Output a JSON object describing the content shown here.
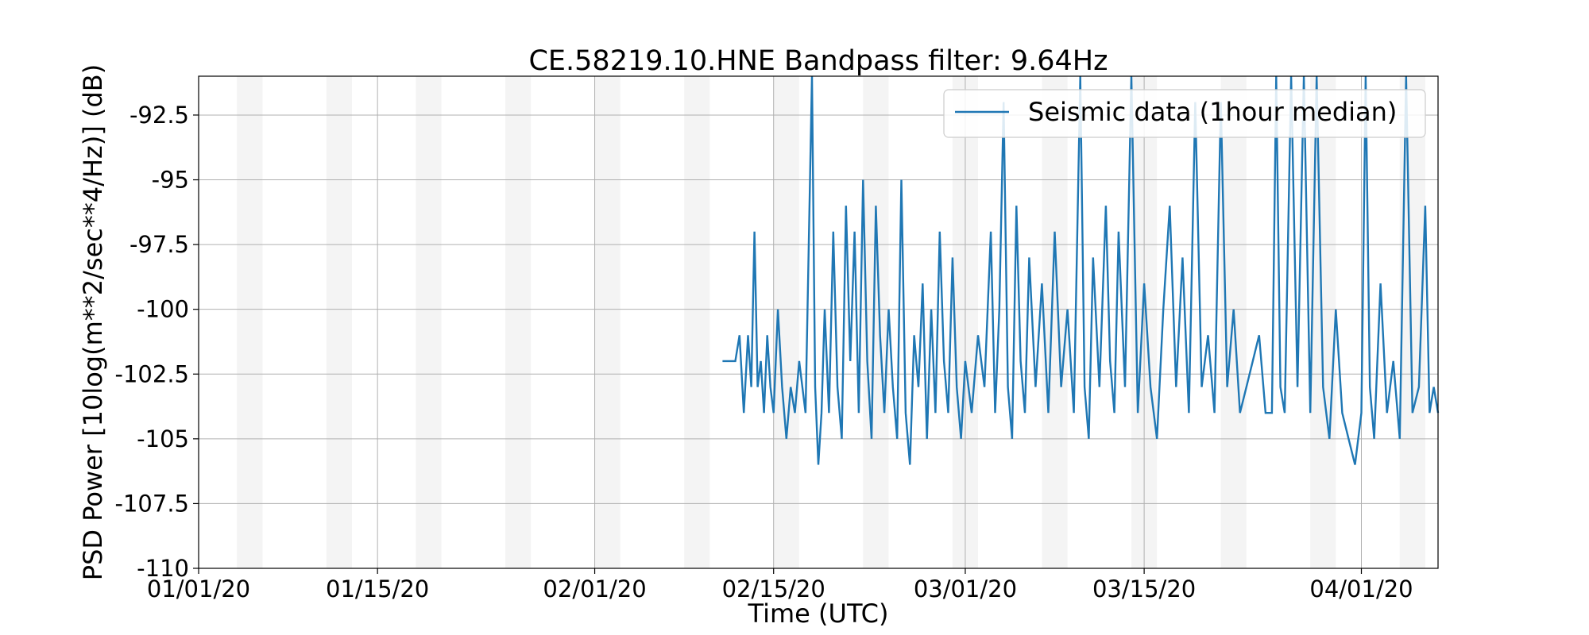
{
  "chart_data": {
    "type": "line",
    "title": "CE.58219.10.HNE Bandpass filter: 9.64Hz",
    "xlabel": "Time (UTC)",
    "ylabel": "PSD Power [10log(m**2/sec**4/Hz)] (dB)",
    "xlim": [
      "2020-01-01",
      "2020-04-07"
    ],
    "ylim": [
      -110,
      -91
    ],
    "x_ticks": [
      {
        "date": "2020-01-01",
        "label": "01/01/20"
      },
      {
        "date": "2020-01-15",
        "label": "01/15/20"
      },
      {
        "date": "2020-02-01",
        "label": "02/01/20"
      },
      {
        "date": "2020-02-15",
        "label": "02/15/20"
      },
      {
        "date": "2020-03-01",
        "label": "03/01/20"
      },
      {
        "date": "2020-03-15",
        "label": "03/15/20"
      },
      {
        "date": "2020-04-01",
        "label": "04/01/20"
      }
    ],
    "y_ticks": [
      {
        "value": -92.5,
        "label": "-92.5"
      },
      {
        "value": -95,
        "label": "-95"
      },
      {
        "value": -97.5,
        "label": "-97.5"
      },
      {
        "value": -100,
        "label": "-100"
      },
      {
        "value": -102.5,
        "label": "-102.5"
      },
      {
        "value": -105,
        "label": "-105"
      },
      {
        "value": -107.5,
        "label": "-107.5"
      },
      {
        "value": -110,
        "label": "-110"
      }
    ],
    "grid": true,
    "legend_position": "top-right",
    "series": [
      {
        "name": "Seismic data (1hour median)",
        "color": "#1f77b4",
        "points": [
          [
            "2020-02-11",
            -102
          ],
          [
            "2020-02-12",
            -102
          ],
          [
            "2020-02-12",
            -101
          ],
          [
            "2020-02-12",
            -104
          ],
          [
            "2020-02-13",
            -101
          ],
          [
            "2020-02-13",
            -103
          ],
          [
            "2020-02-13",
            -97
          ],
          [
            "2020-02-13",
            -103
          ],
          [
            "2020-02-14",
            -102
          ],
          [
            "2020-02-14",
            -104
          ],
          [
            "2020-02-14",
            -101
          ],
          [
            "2020-02-14",
            -103
          ],
          [
            "2020-02-15",
            -104
          ],
          [
            "2020-02-15",
            -100
          ],
          [
            "2020-02-15",
            -103
          ],
          [
            "2020-02-16",
            -105
          ],
          [
            "2020-02-16",
            -103
          ],
          [
            "2020-02-16",
            -104
          ],
          [
            "2020-02-17",
            -102
          ],
          [
            "2020-02-17",
            -104
          ],
          [
            "2020-02-18",
            -91
          ],
          [
            "2020-02-18",
            -103
          ],
          [
            "2020-02-18",
            -106
          ],
          [
            "2020-02-18",
            -104
          ],
          [
            "2020-02-19",
            -100
          ],
          [
            "2020-02-19",
            -104
          ],
          [
            "2020-02-19",
            -97
          ],
          [
            "2020-02-20",
            -103
          ],
          [
            "2020-02-20",
            -105
          ],
          [
            "2020-02-20",
            -96
          ],
          [
            "2020-02-21",
            -102
          ],
          [
            "2020-02-21",
            -97
          ],
          [
            "2020-02-21",
            -104
          ],
          [
            "2020-02-22",
            -95
          ],
          [
            "2020-02-22",
            -102
          ],
          [
            "2020-02-22",
            -105
          ],
          [
            "2020-02-23",
            -96
          ],
          [
            "2020-02-23",
            -101
          ],
          [
            "2020-02-23",
            -104
          ],
          [
            "2020-02-24",
            -100
          ],
          [
            "2020-02-24",
            -103
          ],
          [
            "2020-02-24",
            -105
          ],
          [
            "2020-02-25",
            -95
          ],
          [
            "2020-02-25",
            -104
          ],
          [
            "2020-02-25",
            -106
          ],
          [
            "2020-02-26",
            -101
          ],
          [
            "2020-02-26",
            -103
          ],
          [
            "2020-02-26",
            -99
          ],
          [
            "2020-02-27",
            -105
          ],
          [
            "2020-02-27",
            -100
          ],
          [
            "2020-02-27",
            -104
          ],
          [
            "2020-02-28",
            -97
          ],
          [
            "2020-02-28",
            -102
          ],
          [
            "2020-02-28",
            -104
          ],
          [
            "2020-02-29",
            -98
          ],
          [
            "2020-02-29",
            -103
          ],
          [
            "2020-02-29",
            -105
          ],
          [
            "2020-03-01",
            -102
          ],
          [
            "2020-03-01",
            -104
          ],
          [
            "2020-03-02",
            -101
          ],
          [
            "2020-03-02",
            -103
          ],
          [
            "2020-03-03",
            -97
          ],
          [
            "2020-03-03",
            -104
          ],
          [
            "2020-03-03",
            -100
          ],
          [
            "2020-03-04",
            -92
          ],
          [
            "2020-03-04",
            -103
          ],
          [
            "2020-03-04",
            -105
          ],
          [
            "2020-03-05",
            -96
          ],
          [
            "2020-03-05",
            -102
          ],
          [
            "2020-03-05",
            -104
          ],
          [
            "2020-03-06",
            -98
          ],
          [
            "2020-03-06",
            -103
          ],
          [
            "2020-03-07",
            -99
          ],
          [
            "2020-03-07",
            -104
          ],
          [
            "2020-03-08",
            -97
          ],
          [
            "2020-03-08",
            -103
          ],
          [
            "2020-03-09",
            -100
          ],
          [
            "2020-03-09",
            -104
          ],
          [
            "2020-03-10",
            -91
          ],
          [
            "2020-03-10",
            -103
          ],
          [
            "2020-03-10",
            -105
          ],
          [
            "2020-03-11",
            -98
          ],
          [
            "2020-03-11",
            -103
          ],
          [
            "2020-03-12",
            -96
          ],
          [
            "2020-03-12",
            -102
          ],
          [
            "2020-03-12",
            -104
          ],
          [
            "2020-03-13",
            -97
          ],
          [
            "2020-03-13",
            -103
          ],
          [
            "2020-03-14",
            -91
          ],
          [
            "2020-03-14",
            -104
          ],
          [
            "2020-03-15",
            -99
          ],
          [
            "2020-03-15",
            -103
          ],
          [
            "2020-03-16",
            -105
          ],
          [
            "2020-03-16",
            -100
          ],
          [
            "2020-03-17",
            -96
          ],
          [
            "2020-03-17",
            -103
          ],
          [
            "2020-03-18",
            -98
          ],
          [
            "2020-03-18",
            -104
          ],
          [
            "2020-03-19",
            -92
          ],
          [
            "2020-03-19",
            -103
          ],
          [
            "2020-03-20",
            -101
          ],
          [
            "2020-03-20",
            -104
          ],
          [
            "2020-03-21",
            -92
          ],
          [
            "2020-03-21",
            -103
          ],
          [
            "2020-03-22",
            -100
          ],
          [
            "2020-03-22",
            -104
          ],
          [
            "2020-03-23",
            -103
          ],
          [
            "2020-03-24",
            -101
          ],
          [
            "2020-03-24",
            -104
          ],
          [
            "2020-03-25",
            -104
          ],
          [
            "2020-03-25",
            -91
          ],
          [
            "2020-03-25",
            -103
          ],
          [
            "2020-03-26",
            -104
          ],
          [
            "2020-03-26",
            -91
          ],
          [
            "2020-03-27",
            -103
          ],
          [
            "2020-03-27",
            -91
          ],
          [
            "2020-03-28",
            -104
          ],
          [
            "2020-03-28",
            -91
          ],
          [
            "2020-03-29",
            -103
          ],
          [
            "2020-03-29",
            -105
          ],
          [
            "2020-03-30",
            -100
          ],
          [
            "2020-03-30",
            -104
          ],
          [
            "2020-03-31",
            -105
          ],
          [
            "2020-03-31",
            -106
          ],
          [
            "2020-04-01",
            -104
          ],
          [
            "2020-04-01",
            -91
          ],
          [
            "2020-04-01",
            -103
          ],
          [
            "2020-04-02",
            -105
          ],
          [
            "2020-04-02",
            -99
          ],
          [
            "2020-04-03",
            -104
          ],
          [
            "2020-04-03",
            -102
          ],
          [
            "2020-04-04",
            -105
          ],
          [
            "2020-04-04",
            -91
          ],
          [
            "2020-04-05",
            -104
          ],
          [
            "2020-04-05",
            -103
          ],
          [
            "2020-04-06",
            -96
          ],
          [
            "2020-04-06",
            -104
          ],
          [
            "2020-04-06",
            -103
          ],
          [
            "2020-04-07",
            -104
          ]
        ]
      }
    ]
  }
}
